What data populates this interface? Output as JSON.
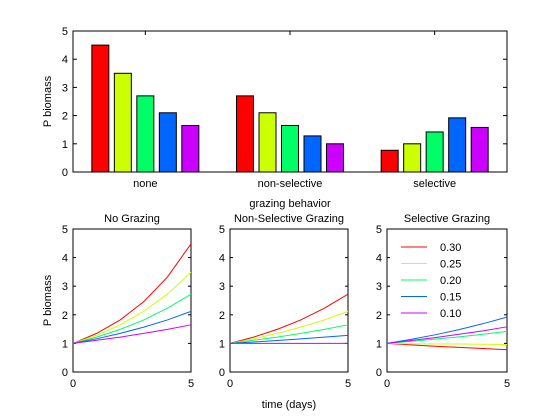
{
  "chart_data": [
    {
      "type": "bar",
      "categories": [
        "none",
        "non-selective",
        "selective"
      ],
      "series": [
        {
          "color": "#ff0000",
          "values": [
            4.5,
            2.7,
            0.77
          ]
        },
        {
          "color": "#ccff00",
          "values": [
            3.5,
            2.1,
            1.0
          ]
        },
        {
          "color": "#00ff66",
          "values": [
            2.7,
            1.65,
            1.42
          ]
        },
        {
          "color": "#0066ff",
          "values": [
            2.1,
            1.28,
            1.92
          ]
        },
        {
          "color": "#cc00ff",
          "values": [
            1.65,
            1.0,
            1.58
          ]
        }
      ],
      "title": "",
      "xlabel": "grazing behavior",
      "ylabel": "P biomass",
      "ylim": [
        0,
        5
      ],
      "yticks": [
        "0",
        "1",
        "2",
        "3",
        "4",
        "5"
      ]
    },
    {
      "type": "line",
      "title": "No Grazing",
      "xlabel": "",
      "ylabel": "P biomass",
      "xlim": [
        0,
        5
      ],
      "ylim": [
        0,
        5
      ],
      "xticks": [
        "0",
        "5"
      ],
      "yticks": [
        "0",
        "1",
        "2",
        "3",
        "4",
        "5"
      ],
      "x": [
        0,
        1,
        2,
        3,
        4,
        5
      ],
      "series": [
        {
          "color": "#ff0000",
          "values": [
            1.0,
            1.35,
            1.82,
            2.46,
            3.32,
            4.48
          ]
        },
        {
          "color": "#ccff00",
          "values": [
            1.0,
            1.28,
            1.65,
            2.12,
            2.72,
            3.49
          ]
        },
        {
          "color": "#00ff66",
          "values": [
            1.0,
            1.22,
            1.49,
            1.82,
            2.23,
            2.72
          ]
        },
        {
          "color": "#0066ff",
          "values": [
            1.0,
            1.16,
            1.35,
            1.57,
            1.82,
            2.12
          ]
        },
        {
          "color": "#cc00ff",
          "values": [
            1.0,
            1.11,
            1.22,
            1.35,
            1.49,
            1.65
          ]
        }
      ]
    },
    {
      "type": "line",
      "title": "Non-Selective Grazing",
      "xlabel": "time (days)",
      "ylabel": "",
      "xlim": [
        0,
        5
      ],
      "ylim": [
        0,
        5
      ],
      "xticks": [
        "0",
        "5"
      ],
      "yticks": [
        "0",
        "1",
        "2",
        "3",
        "4",
        "5"
      ],
      "x": [
        0,
        1,
        2,
        3,
        4,
        5
      ],
      "series": [
        {
          "color": "#ff0000",
          "values": [
            1.0,
            1.22,
            1.49,
            1.82,
            2.23,
            2.72
          ]
        },
        {
          "color": "#ccff00",
          "values": [
            1.0,
            1.16,
            1.35,
            1.57,
            1.82,
            2.12
          ]
        },
        {
          "color": "#00ff66",
          "values": [
            1.0,
            1.11,
            1.22,
            1.35,
            1.49,
            1.65
          ]
        },
        {
          "color": "#0066ff",
          "values": [
            1.0,
            1.05,
            1.1,
            1.16,
            1.22,
            1.28
          ]
        },
        {
          "color": "#cc00ff",
          "values": [
            1.0,
            1.0,
            1.0,
            1.0,
            1.0,
            1.0
          ]
        }
      ]
    },
    {
      "type": "line",
      "title": "Selective Grazing",
      "xlabel": "",
      "ylabel": "",
      "xlim": [
        0,
        5
      ],
      "ylim": [
        0,
        5
      ],
      "xticks": [
        "0",
        "5"
      ],
      "yticks": [
        "0",
        "1",
        "2",
        "3",
        "4",
        "5"
      ],
      "x": [
        0,
        1,
        2,
        3,
        4,
        5
      ],
      "legend": "top-left",
      "series": [
        {
          "name": "0.30",
          "color": "#ff0000",
          "values": [
            1.0,
            0.95,
            0.9,
            0.86,
            0.82,
            0.78
          ]
        },
        {
          "name": "0.25",
          "color": "#ccff00",
          "values": [
            1.0,
            0.99,
            0.98,
            0.98,
            0.97,
            0.96
          ]
        },
        {
          "name": "0.20",
          "color": "#00ff66",
          "values": [
            1.0,
            1.07,
            1.15,
            1.23,
            1.32,
            1.42
          ]
        },
        {
          "name": "0.15",
          "color": "#0066ff",
          "values": [
            1.0,
            1.14,
            1.3,
            1.48,
            1.69,
            1.92
          ]
        },
        {
          "name": "0.10",
          "color": "#cc00ff",
          "values": [
            1.0,
            1.1,
            1.2,
            1.32,
            1.44,
            1.58
          ]
        }
      ]
    }
  ]
}
